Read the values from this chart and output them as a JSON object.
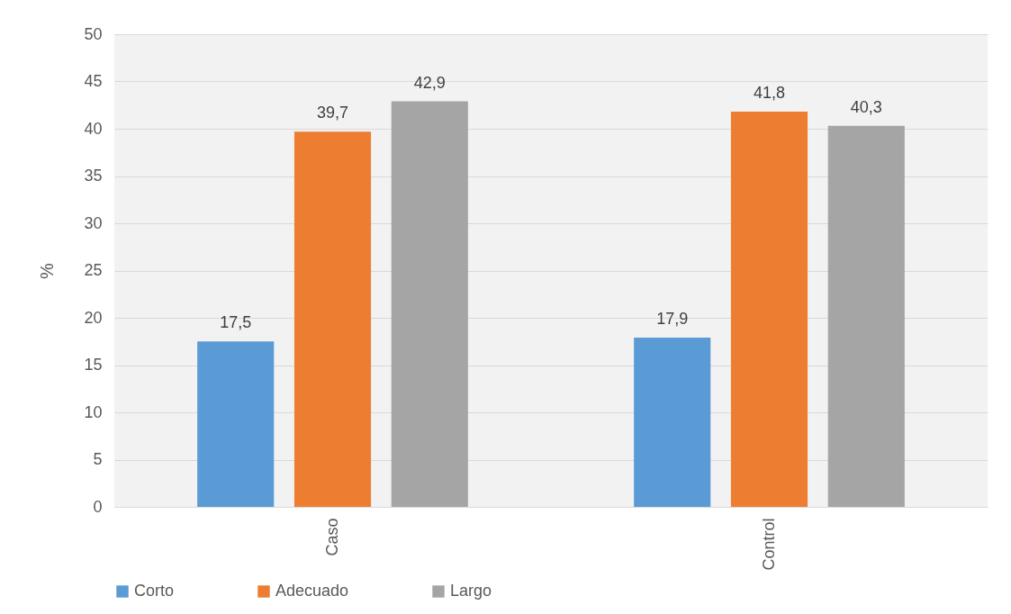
{
  "chart_data": {
    "type": "bar",
    "categories": [
      "Caso",
      "Control"
    ],
    "ylabel": "%",
    "ylim": [
      0,
      50
    ],
    "yticks": [
      0,
      5,
      10,
      15,
      20,
      25,
      30,
      35,
      40,
      45,
      50
    ],
    "grid": "y",
    "legend": "bottom",
    "series": [
      {
        "name": "Corto",
        "color": "#5b9bd5",
        "values": [
          17.5,
          17.9
        ],
        "value_labels": [
          "17,5",
          "17,9"
        ]
      },
      {
        "name": "Adecuado",
        "color": "#ed7d31",
        "values": [
          39.7,
          41.8
        ],
        "value_labels": [
          "39,7",
          "41,8"
        ]
      },
      {
        "name": "Largo",
        "color": "#a5a5a5",
        "values": [
          42.9,
          40.3
        ],
        "value_labels": [
          "42,9",
          "40,3"
        ]
      }
    ]
  }
}
